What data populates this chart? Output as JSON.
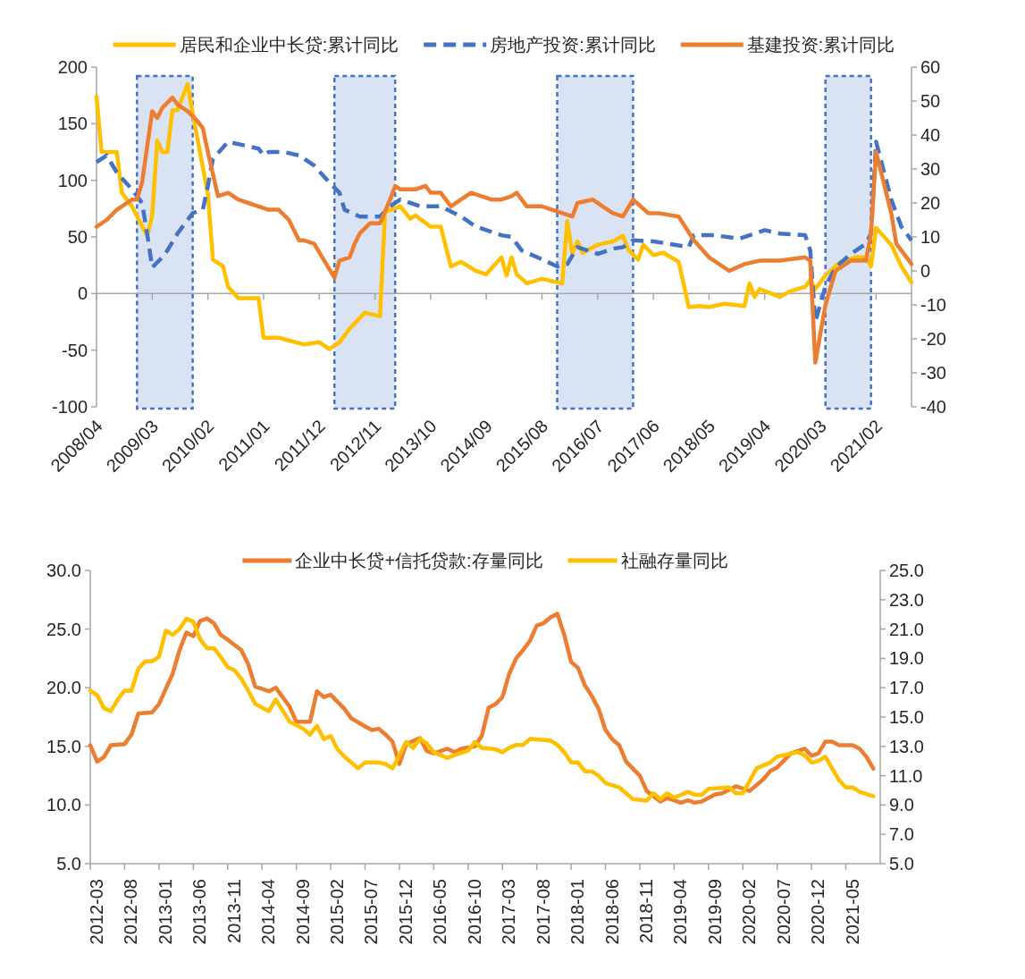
{
  "chart_data": [
    {
      "type": "line",
      "legend": "top",
      "xlim": [
        "2008-04",
        "2021-09"
      ],
      "xticks": [
        {
          "value": "2008-04",
          "label": "2008/04"
        },
        {
          "value": "2009-03",
          "label": "2009/03"
        },
        {
          "value": "2010-02",
          "label": "2010/02"
        },
        {
          "value": "2011-01",
          "label": "2011/01"
        },
        {
          "value": "2011-12",
          "label": "2011/12"
        },
        {
          "value": "2012-11",
          "label": "2012/11"
        },
        {
          "value": "2013-10",
          "label": "2013/10"
        },
        {
          "value": "2014-09",
          "label": "2014/09"
        },
        {
          "value": "2015-08",
          "label": "2015/08"
        },
        {
          "value": "2016-07",
          "label": "2016/07"
        },
        {
          "value": "2017-06",
          "label": "2017/06"
        },
        {
          "value": "2018-05",
          "label": "2018/05"
        },
        {
          "value": "2019-04",
          "label": "2019/04"
        },
        {
          "value": "2020-03",
          "label": "2020/03"
        },
        {
          "value": "2021-02",
          "label": "2021/02"
        }
      ],
      "ylim": [
        -100,
        200
      ],
      "yticks": [
        -100,
        -50,
        0,
        50,
        100,
        150,
        200
      ],
      "y2lim": [
        -40,
        60
      ],
      "y2ticks": [
        -40,
        -30,
        -20,
        -10,
        0,
        10,
        20,
        30,
        40,
        50,
        60
      ],
      "ref_lines": [
        {
          "axis": "y",
          "value": 0,
          "color": "#a6a6a6"
        }
      ],
      "bands": [
        {
          "axis": "x",
          "from": "2008-12",
          "to": "2009-11",
          "color": "#dae3f3"
        },
        {
          "axis": "x",
          "from": "2012-03",
          "to": "2013-03",
          "color": "#dae3f3"
        },
        {
          "axis": "x",
          "from": "2015-11",
          "to": "2017-02",
          "color": "#dae3f3"
        },
        {
          "axis": "x",
          "from": "2020-04",
          "to": "2021-01",
          "color": "#dae3f3"
        }
      ],
      "series": [
        {
          "name": "居民和企业中长贷:累计同比",
          "color": "#ffc000",
          "x": [
            "2008-04",
            "2008-05",
            "2008-08",
            "2008-09",
            "2008-11",
            "2009-02",
            "2009-03",
            "2009-04",
            "2009-05",
            "2009-06",
            "2009-07",
            "2009-08",
            "2009-10",
            "2009-11",
            "2010-02",
            "2010-03",
            "2010-05",
            "2010-06",
            "2010-08",
            "2010-12",
            "2011-01",
            "2011-04",
            "2011-09",
            "2011-12",
            "2012-02",
            "2012-04",
            "2012-06",
            "2012-09",
            "2012-12",
            "2013-01",
            "2013-04",
            "2013-06",
            "2013-07",
            "2013-10",
            "2013-12",
            "2014-02",
            "2014-04",
            "2014-07",
            "2014-09",
            "2014-12",
            "2015-01",
            "2015-02",
            "2015-03",
            "2015-05",
            "2015-08",
            "2015-12",
            "2016-01",
            "2016-02",
            "2016-03",
            "2016-04",
            "2016-07",
            "2016-10",
            "2016-12",
            "2017-01",
            "2017-03",
            "2017-04",
            "2017-06",
            "2017-08",
            "2017-11",
            "2018-01",
            "2018-03",
            "2018-05",
            "2018-08",
            "2018-12",
            "2019-01",
            "2019-02",
            "2019-03",
            "2019-07",
            "2019-09",
            "2019-12",
            "2020-01",
            "2020-02",
            "2020-04",
            "2020-07",
            "2020-10",
            "2020-12",
            "2021-01",
            "2021-02",
            "2021-05",
            "2021-07",
            "2021-09"
          ],
          "values": [
            174,
            125,
            125,
            89,
            77,
            51,
            69,
            135,
            125,
            125,
            162,
            162,
            185,
            159,
            88,
            30,
            24,
            6,
            -4,
            -4,
            -39,
            -39,
            -45,
            -43,
            -49,
            -43,
            -31,
            -17,
            -20,
            72,
            77,
            66,
            69,
            59,
            59,
            24,
            28,
            20,
            17,
            32,
            16,
            32,
            17,
            9,
            13,
            9,
            64,
            35,
            46,
            36,
            43,
            46,
            51,
            39,
            30,
            43,
            34,
            36,
            28,
            -12,
            -11,
            -12,
            -9,
            -11,
            9,
            -3,
            4,
            -3,
            2,
            6,
            12,
            4,
            16,
            28,
            32,
            32,
            24,
            58,
            43,
            24,
            10
          ]
        },
        {
          "name": "房地产投资:累计同比",
          "color": "#4472c4",
          "axis": "y2",
          "line_style": "dashed",
          "x": [
            "2008-04",
            "2008-06",
            "2008-08",
            "2008-11",
            "2009-01",
            "2009-02",
            "2009-03",
            "2009-05",
            "2009-06",
            "2009-08",
            "2009-11",
            "2010-01",
            "2010-02",
            "2010-03",
            "2010-06",
            "2010-09",
            "2010-12",
            "2011-01",
            "2011-02",
            "2011-05",
            "2011-08",
            "2011-11",
            "2012-02",
            "2012-04",
            "2012-05",
            "2012-08",
            "2012-12",
            "2013-02",
            "2013-04",
            "2013-08",
            "2013-12",
            "2014-04",
            "2014-07",
            "2014-12",
            "2015-02",
            "2015-04",
            "2015-08",
            "2015-11",
            "2016-01",
            "2016-03",
            "2016-07",
            "2016-10",
            "2016-12",
            "2017-02",
            "2017-06",
            "2017-09",
            "2018-01",
            "2018-02",
            "2018-06",
            "2018-11",
            "2019-02",
            "2019-04",
            "2019-07",
            "2019-12",
            "2020-01",
            "2020-02",
            "2020-04",
            "2020-06",
            "2020-09",
            "2020-12",
            "2021-01",
            "2021-02",
            "2021-05",
            "2021-07",
            "2021-09"
          ],
          "values": [
            32,
            34,
            29,
            24,
            20,
            11,
            1,
            4,
            6,
            11,
            17,
            18,
            25,
            33,
            38,
            37,
            36,
            34,
            35,
            35,
            34,
            31,
            26,
            23,
            18,
            16,
            16,
            19,
            21,
            19,
            19,
            16,
            13,
            10.5,
            10,
            6,
            3.4,
            1.3,
            2,
            7,
            5,
            6.5,
            7,
            9,
            8.7,
            8,
            7,
            10.5,
            10.5,
            9.5,
            11,
            12,
            11,
            10.5,
            6,
            -15,
            -4.5,
            1,
            5,
            8,
            11,
            38,
            21,
            13,
            9
          ]
        },
        {
          "name": "基建投资:累计同比",
          "color": "#ed7d31",
          "axis": "y2",
          "x": [
            "2008-04",
            "2008-06",
            "2008-08",
            "2008-09",
            "2008-11",
            "2008-12",
            "2009-01",
            "2009-03",
            "2009-04",
            "2009-05",
            "2009-07",
            "2009-08",
            "2009-10",
            "2009-12",
            "2010-01",
            "2010-02",
            "2010-04",
            "2010-06",
            "2010-08",
            "2010-10",
            "2010-12",
            "2011-02",
            "2011-04",
            "2011-06",
            "2011-08",
            "2011-09",
            "2011-11",
            "2012-03",
            "2012-04",
            "2012-06",
            "2012-07",
            "2012-08",
            "2012-10",
            "2012-12",
            "2013-02",
            "2013-03",
            "2013-04",
            "2013-07",
            "2013-09",
            "2013-10",
            "2013-12",
            "2014-02",
            "2014-04",
            "2014-06",
            "2014-10",
            "2014-12",
            "2015-02",
            "2015-03",
            "2015-05",
            "2015-08",
            "2015-10",
            "2015-12",
            "2016-02",
            "2016-03",
            "2016-06",
            "2016-08",
            "2016-10",
            "2016-12",
            "2017-02",
            "2017-05",
            "2017-07",
            "2017-11",
            "2018-02",
            "2018-05",
            "2018-09",
            "2018-12",
            "2019-03",
            "2019-07",
            "2019-12",
            "2020-01",
            "2020-02",
            "2020-04",
            "2020-06",
            "2020-09",
            "2020-12",
            "2021-01",
            "2021-02",
            "2021-03",
            "2021-05",
            "2021-06",
            "2021-09"
          ],
          "values": [
            13,
            15,
            18,
            19,
            21,
            21,
            26,
            47,
            45,
            48,
            51,
            49,
            47,
            44,
            42,
            35,
            22,
            23,
            21,
            20,
            19,
            18,
            18,
            15,
            9,
            9,
            8,
            -2,
            3,
            4,
            8,
            11,
            14,
            14,
            21,
            25,
            24,
            24,
            25,
            23,
            23,
            19,
            21,
            23,
            21,
            21,
            22,
            23,
            19,
            19,
            18,
            17,
            16,
            20,
            21,
            19,
            17,
            16,
            21,
            17,
            17,
            16,
            9,
            4,
            0,
            2,
            3,
            3,
            4,
            3,
            -27,
            -10,
            0,
            3,
            3,
            11,
            35,
            29,
            17,
            8,
            2
          ]
        }
      ]
    },
    {
      "type": "line",
      "legend": "top",
      "xlim": [
        "2012-03",
        "2021-10"
      ],
      "xticks": [
        {
          "value": "2012-03",
          "label": "2012-03"
        },
        {
          "value": "2012-08",
          "label": "2012-08"
        },
        {
          "value": "2013-01",
          "label": "2013-01"
        },
        {
          "value": "2013-06",
          "label": "2013-06"
        },
        {
          "value": "2013-11",
          "label": "2013-11"
        },
        {
          "value": "2014-04",
          "label": "2014-04"
        },
        {
          "value": "2014-09",
          "label": "2014-09"
        },
        {
          "value": "2015-02",
          "label": "2015-02"
        },
        {
          "value": "2015-07",
          "label": "2015-07"
        },
        {
          "value": "2015-12",
          "label": "2015-12"
        },
        {
          "value": "2016-05",
          "label": "2016-05"
        },
        {
          "value": "2016-10",
          "label": "2016-10"
        },
        {
          "value": "2017-03",
          "label": "2017-03"
        },
        {
          "value": "2017-08",
          "label": "2017-08"
        },
        {
          "value": "2018-01",
          "label": "2018-01"
        },
        {
          "value": "2018-06",
          "label": "2018-06"
        },
        {
          "value": "2018-11",
          "label": "2018-11"
        },
        {
          "value": "2019-04",
          "label": "2019-04"
        },
        {
          "value": "2019-09",
          "label": "2019-09"
        },
        {
          "value": "2020-02",
          "label": "2020-02"
        },
        {
          "value": "2020-07",
          "label": "2020-07"
        },
        {
          "value": "2020-12",
          "label": "2020-12"
        },
        {
          "value": "2021-05",
          "label": "2021-05"
        }
      ],
      "ylim": [
        5,
        30
      ],
      "yticks": [
        {
          "value": 5,
          "label": "5.0"
        },
        {
          "value": 10,
          "label": "10.0"
        },
        {
          "value": 15,
          "label": "15.0"
        },
        {
          "value": 20,
          "label": "20.0"
        },
        {
          "value": 25,
          "label": "25.0"
        },
        {
          "value": 30,
          "label": "30.0"
        }
      ],
      "y2lim": [
        5,
        25
      ],
      "y2ticks": [
        {
          "value": 5,
          "label": "5.0"
        },
        {
          "value": 7,
          "label": "7.0"
        },
        {
          "value": 9,
          "label": "9.0"
        },
        {
          "value": 11,
          "label": "11.0"
        },
        {
          "value": 13,
          "label": "13.0"
        },
        {
          "value": 15,
          "label": "15.0"
        },
        {
          "value": 17,
          "label": "17.0"
        },
        {
          "value": 19,
          "label": "19.0"
        },
        {
          "value": 21,
          "label": "21.0"
        },
        {
          "value": 23,
          "label": "23.0"
        },
        {
          "value": 25,
          "label": "25.0"
        }
      ],
      "series": [
        {
          "name": "企业中长贷+信托贷款:存量同比",
          "color": "#ed7d31",
          "x": [
            "2012-03",
            "2012-04",
            "2012-05",
            "2012-06",
            "2012-08",
            "2012-09",
            "2012-10",
            "2012-12",
            "2013-01",
            "2013-03",
            "2013-04",
            "2013-05",
            "2013-06",
            "2013-07",
            "2013-08",
            "2013-09",
            "2013-10",
            "2013-11",
            "2014-01",
            "2014-02",
            "2014-03",
            "2014-05",
            "2014-06",
            "2014-08",
            "2014-09",
            "2014-11",
            "2014-12",
            "2015-01",
            "2015-02",
            "2015-04",
            "2015-05",
            "2015-07",
            "2015-08",
            "2015-09",
            "2015-10",
            "2015-11",
            "2015-12",
            "2016-01",
            "2016-03",
            "2016-04",
            "2016-05",
            "2016-07",
            "2016-08",
            "2016-09",
            "2016-11",
            "2016-12",
            "2017-01",
            "2017-02",
            "2017-03",
            "2017-04",
            "2017-05",
            "2017-06",
            "2017-07",
            "2017-08",
            "2017-09",
            "2017-10",
            "2017-11",
            "2017-12",
            "2018-01",
            "2018-02",
            "2018-03",
            "2018-04",
            "2018-05",
            "2018-06",
            "2018-07",
            "2018-08",
            "2018-09",
            "2018-11",
            "2018-12",
            "2019-02",
            "2019-03",
            "2019-05",
            "2019-06",
            "2019-07",
            "2019-08",
            "2019-10",
            "2019-11",
            "2020-01",
            "2020-03",
            "2020-05",
            "2020-06",
            "2020-07",
            "2020-09",
            "2020-11",
            "2020-12",
            "2021-01",
            "2021-02",
            "2021-03",
            "2021-04",
            "2021-06",
            "2021-07",
            "2021-08",
            "2021-09"
          ],
          "values": [
            15.1,
            13.7,
            14.1,
            15.1,
            15.2,
            16.0,
            17.8,
            17.9,
            18.6,
            21.2,
            23.2,
            24.7,
            24.4,
            25.7,
            25.9,
            25.5,
            24.5,
            24.1,
            23.2,
            22.0,
            20.1,
            19.7,
            20.0,
            18.4,
            17.1,
            17.1,
            19.7,
            19.2,
            19.4,
            18.2,
            17.4,
            16.7,
            16.4,
            16.5,
            16.0,
            15.4,
            13.5,
            15.2,
            15.7,
            14.6,
            14.4,
            14.8,
            14.5,
            14.8,
            15.0,
            15.9,
            18.3,
            18.6,
            19.2,
            21.2,
            22.5,
            23.2,
            24.0,
            25.3,
            25.5,
            26.0,
            26.3,
            24.5,
            22.2,
            21.7,
            20.2,
            19.3,
            18.2,
            16.4,
            15.6,
            15.1,
            13.7,
            12.5,
            11.2,
            10.3,
            10.6,
            10.2,
            10.4,
            10.2,
            10.3,
            10.9,
            11.0,
            11.6,
            11.2,
            12.2,
            12.9,
            13.2,
            14.4,
            14.8,
            14.2,
            14.4,
            15.4,
            15.4,
            15.1,
            15.1,
            14.8,
            14.1,
            13.1
          ]
        },
        {
          "name": "社融存量同比",
          "color": "#ffc000",
          "axis": "y2",
          "x": [
            "2012-03",
            "2012-04",
            "2012-05",
            "2012-06",
            "2012-07",
            "2012-08",
            "2012-09",
            "2012-10",
            "2012-11",
            "2012-12",
            "2013-01",
            "2013-02",
            "2013-03",
            "2013-04",
            "2013-05",
            "2013-06",
            "2013-07",
            "2013-08",
            "2013-09",
            "2013-10",
            "2013-11",
            "2013-12",
            "2014-01",
            "2014-02",
            "2014-03",
            "2014-05",
            "2014-06",
            "2014-08",
            "2014-10",
            "2014-11",
            "2014-12",
            "2015-01",
            "2015-02",
            "2015-03",
            "2015-04",
            "2015-05",
            "2015-06",
            "2015-07",
            "2015-09",
            "2015-10",
            "2015-11",
            "2016-01",
            "2016-02",
            "2016-03",
            "2016-04",
            "2016-05",
            "2016-07",
            "2016-08",
            "2016-10",
            "2016-11",
            "2016-12",
            "2017-02",
            "2017-03",
            "2017-04",
            "2017-05",
            "2017-06",
            "2017-07",
            "2017-10",
            "2017-11",
            "2017-12",
            "2018-01",
            "2018-02",
            "2018-03",
            "2018-04",
            "2018-05",
            "2018-06",
            "2018-08",
            "2018-09",
            "2018-10",
            "2018-12",
            "2019-01",
            "2019-02",
            "2019-03",
            "2019-04",
            "2019-06",
            "2019-07",
            "2019-08",
            "2019-09",
            "2019-12",
            "2020-01",
            "2020-02",
            "2020-04",
            "2020-06",
            "2020-07",
            "2020-09",
            "2020-10",
            "2020-11",
            "2020-12",
            "2021-01",
            "2021-02",
            "2021-03",
            "2021-04",
            "2021-05",
            "2021-06",
            "2021-07",
            "2021-09"
          ],
          "values": [
            16.8,
            16.5,
            15.6,
            15.4,
            16.2,
            16.8,
            16.8,
            18.3,
            18.8,
            18.8,
            19.1,
            20.9,
            20.6,
            21.0,
            21.7,
            21.5,
            20.3,
            19.7,
            19.7,
            19.1,
            18.4,
            18.2,
            17.6,
            16.8,
            15.9,
            15.4,
            16.2,
            14.7,
            14.2,
            13.8,
            14.4,
            13.5,
            13.7,
            12.8,
            12.3,
            11.9,
            11.5,
            11.9,
            11.9,
            11.8,
            11.5,
            13.3,
            12.9,
            13.5,
            13.2,
            12.6,
            12.2,
            12.4,
            12.7,
            13.3,
            12.9,
            12.8,
            12.6,
            12.9,
            13.1,
            13.1,
            13.5,
            13.4,
            13.1,
            12.6,
            11.9,
            11.9,
            11.3,
            11.3,
            11.0,
            10.5,
            10.2,
            9.8,
            9.4,
            9.3,
            9.8,
            9.4,
            9.8,
            9.5,
            9.9,
            9.7,
            9.7,
            10.1,
            10.2,
            9.8,
            9.8,
            11.5,
            11.9,
            12.3,
            12.5,
            12.6,
            12.4,
            11.9,
            12.0,
            12.3,
            11.5,
            10.7,
            10.2,
            10.2,
            9.9,
            9.6
          ]
        }
      ]
    }
  ]
}
